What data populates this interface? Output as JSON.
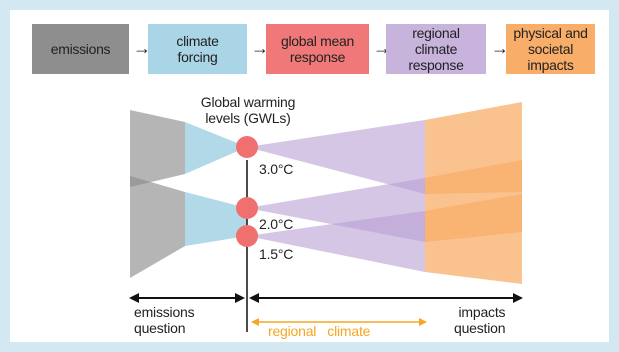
{
  "chain": [
    {
      "label": "emissions",
      "color": "#8e8e8e"
    },
    {
      "label": "climate\nforcing",
      "color": "#a9d5e6"
    },
    {
      "label": "global mean\nresponse",
      "color": "#f07878"
    },
    {
      "label": "regional\nclimate\nresponse",
      "color": "#c7b3dc"
    },
    {
      "label": "physical and\nsocietal\nimpacts",
      "color": "#f8ad68"
    }
  ],
  "arrow_glyph": "→",
  "gwl": {
    "title": "Global warming\nlevels (GWLs)",
    "levels": [
      "3.0°C",
      "2.0°C",
      "1.5°C"
    ],
    "dot_color": "#f07070"
  },
  "bottom": {
    "emissions_question": "emissions\nquestion",
    "impacts_question": "impacts\nquestion",
    "regional_climate": "regional   climate",
    "regional_color": "#f5a623"
  }
}
